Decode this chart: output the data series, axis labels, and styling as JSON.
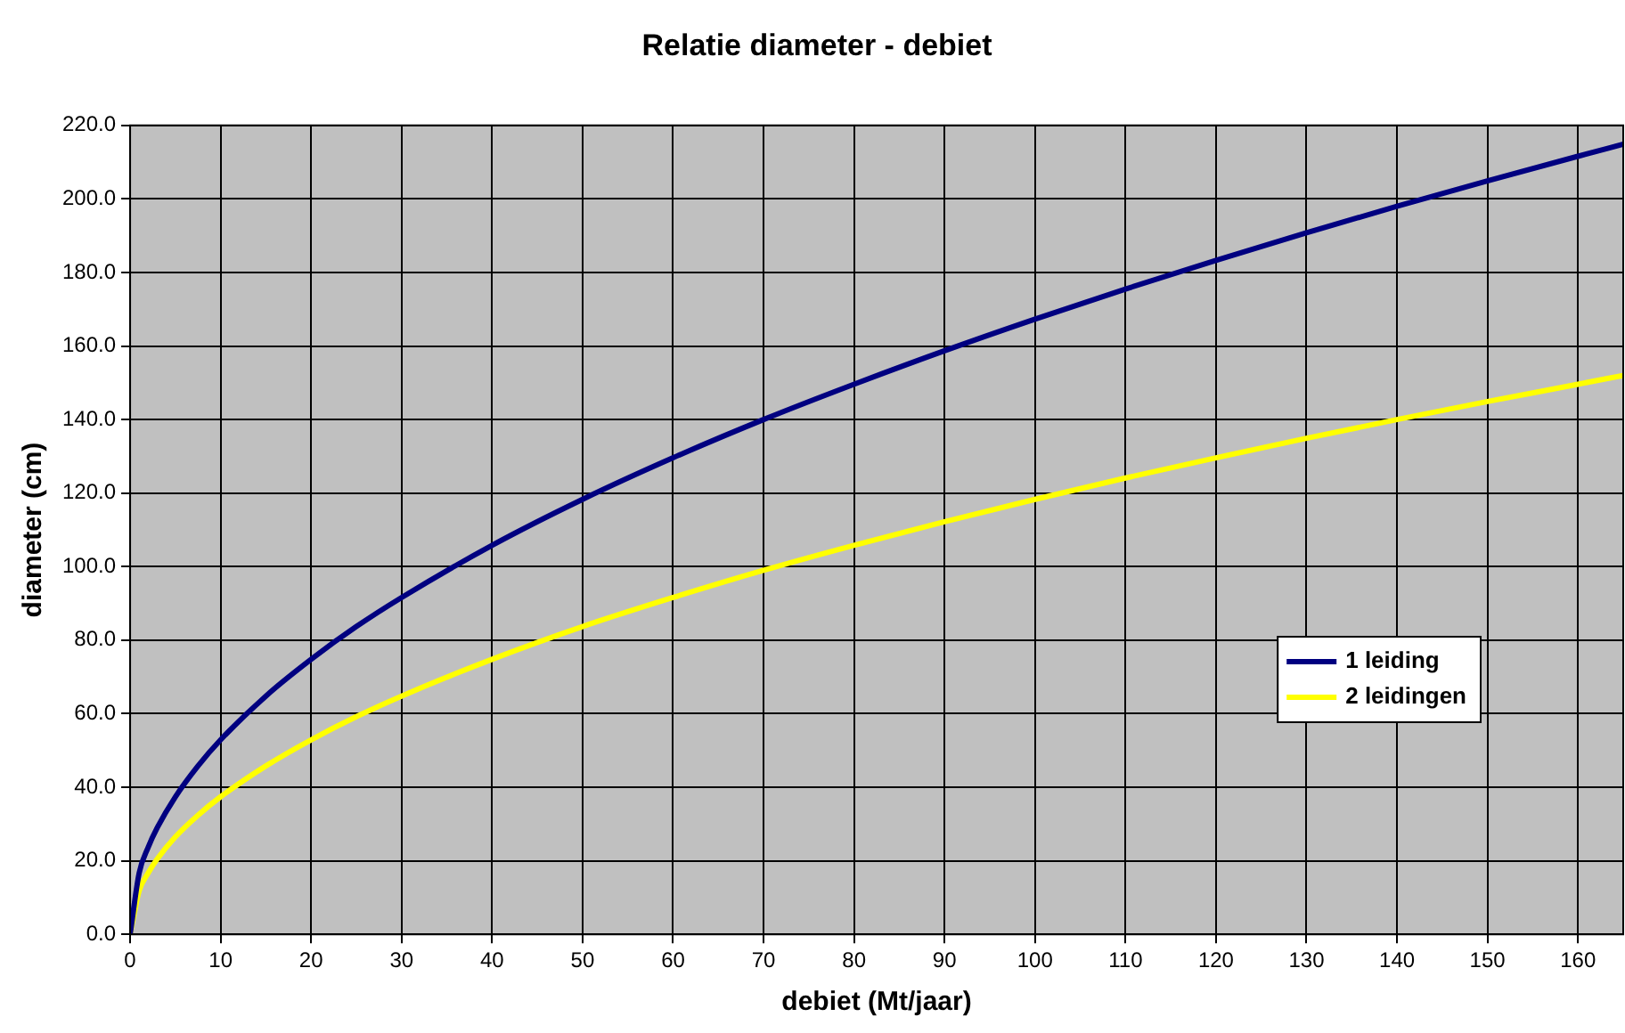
{
  "chart_data": {
    "type": "line",
    "title": "Relatie diameter - debiet",
    "xlabel": "debiet (Mt/jaar)",
    "ylabel": "diameter (cm)",
    "x": [
      0,
      1,
      2,
      3,
      5,
      7.5,
      10,
      15,
      20,
      25,
      30,
      40,
      50,
      60,
      70,
      80,
      90,
      100,
      110,
      120,
      130,
      140,
      150,
      160,
      165
    ],
    "series": [
      {
        "name": "1 leiding",
        "color": "#000080",
        "values": [
          0,
          16.7,
          23.7,
          29.0,
          37.4,
          45.8,
          52.9,
          64.8,
          74.8,
          83.7,
          91.6,
          105.8,
          118.3,
          129.6,
          140.0,
          149.6,
          158.7,
          167.3,
          175.5,
          183.3,
          190.8,
          198.0,
          204.9,
          211.6,
          214.9
        ]
      },
      {
        "name": "2 leidingen",
        "color": "#ffff00",
        "values": [
          0,
          11.8,
          16.7,
          20.5,
          26.5,
          32.4,
          37.4,
          45.8,
          52.9,
          59.2,
          64.8,
          74.8,
          83.7,
          91.6,
          99.0,
          105.8,
          112.2,
          118.3,
          124.1,
          129.6,
          134.9,
          140.0,
          144.9,
          149.6,
          152.0
        ]
      }
    ],
    "xlim": [
      0,
      165
    ],
    "xticks": [
      0,
      10,
      20,
      30,
      40,
      50,
      60,
      70,
      80,
      90,
      100,
      110,
      120,
      130,
      140,
      150,
      160
    ],
    "ylim": [
      0,
      220
    ],
    "yticks": [
      {
        "value": 0,
        "label": "0.0"
      },
      {
        "value": 20,
        "label": "20.0"
      },
      {
        "value": 40,
        "label": "40.0"
      },
      {
        "value": 60,
        "label": "60.0"
      },
      {
        "value": 80,
        "label": "80.0"
      },
      {
        "value": 100,
        "label": "100.0"
      },
      {
        "value": 120,
        "label": "120.0"
      },
      {
        "value": 140,
        "label": "140.0"
      },
      {
        "value": 160,
        "label": "160.0"
      },
      {
        "value": 180,
        "label": "180.0"
      },
      {
        "value": 200,
        "label": "200.0"
      },
      {
        "value": 220,
        "label": "220.0"
      }
    ],
    "grid": true,
    "legend": "right",
    "marker": "none",
    "line_style": "solid"
  }
}
